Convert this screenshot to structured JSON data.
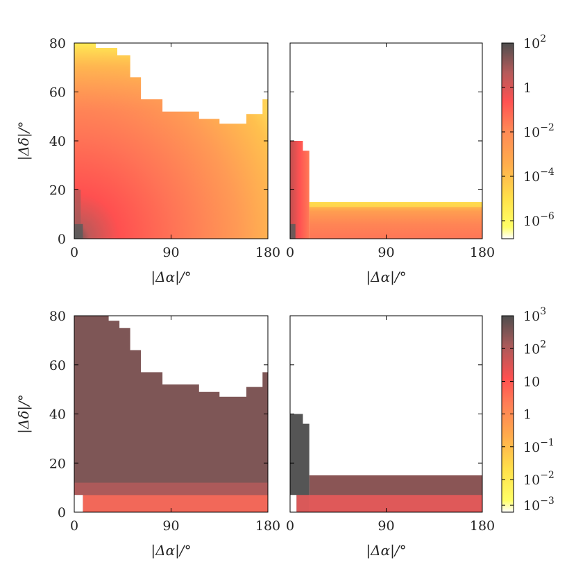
{
  "chart_data": [
    {
      "type": "heatmap",
      "panel": "top-left",
      "xlabel": "|Δα|/°",
      "ylabel": "|Δδ|/°",
      "xlim": [
        0,
        180
      ],
      "ylim": [
        0,
        80
      ],
      "xticks": [
        {
          "v": 0,
          "label": "0"
        },
        {
          "v": 90,
          "label": "90"
        },
        {
          "v": 180,
          "label": "180"
        }
      ],
      "yticks": [
        {
          "v": 0,
          "label": "0"
        },
        {
          "v": 20,
          "label": "20"
        },
        {
          "v": 40,
          "label": "40"
        },
        {
          "v": 60,
          "label": "60"
        },
        {
          "v": 80,
          "label": "80"
        }
      ],
      "color_scale": "log",
      "filled_region": [
        [
          0,
          80
        ],
        [
          20,
          80
        ],
        [
          20,
          78
        ],
        [
          40,
          78
        ],
        [
          40,
          75
        ],
        [
          52,
          75
        ],
        [
          52,
          66
        ],
        [
          62,
          66
        ],
        [
          62,
          57
        ],
        [
          82,
          57
        ],
        [
          82,
          52
        ],
        [
          116,
          52
        ],
        [
          116,
          49
        ],
        [
          135,
          49
        ],
        [
          135,
          47
        ],
        [
          160,
          47
        ],
        [
          160,
          51
        ],
        [
          175,
          51
        ],
        [
          175,
          57
        ],
        [
          180,
          57
        ]
      ],
      "description_values": "peak ~10^2 near origin, ~10^-1 near small Δα, ~10^-2 to 10^-4 at large Δα, ~10^-6 at top boundary"
    },
    {
      "type": "heatmap",
      "panel": "top-right",
      "xlabel": "|Δα|/°",
      "ylabel": "",
      "xlim": [
        0,
        180
      ],
      "ylim": [
        0,
        80
      ],
      "xticks": [
        {
          "v": 0,
          "label": "0"
        },
        {
          "v": 90,
          "label": "90"
        },
        {
          "v": 180,
          "label": "180"
        }
      ],
      "yticks": [
        {
          "v": 0,
          "label": ""
        },
        {
          "v": 20,
          "label": ""
        },
        {
          "v": 40,
          "label": ""
        },
        {
          "v": 60,
          "label": ""
        },
        {
          "v": 80,
          "label": ""
        }
      ],
      "color_scale": "log",
      "filled_region": [
        [
          0,
          40
        ],
        [
          12,
          40
        ],
        [
          12,
          36
        ],
        [
          18,
          36
        ],
        [
          18,
          15
        ],
        [
          180,
          15
        ]
      ]
    },
    {
      "type": "heatmap",
      "panel": "bottom-left",
      "xlabel": "|Δα|/°",
      "ylabel": "|Δδ|/°",
      "xlim": [
        0,
        180
      ],
      "ylim": [
        0,
        80
      ],
      "xticks": [
        {
          "v": 0,
          "label": "0"
        },
        {
          "v": 90,
          "label": "90"
        },
        {
          "v": 180,
          "label": "180"
        }
      ],
      "yticks": [
        {
          "v": 0,
          "label": "0"
        },
        {
          "v": 20,
          "label": "20"
        },
        {
          "v": 40,
          "label": "40"
        },
        {
          "v": 60,
          "label": "60"
        },
        {
          "v": 80,
          "label": "80"
        }
      ],
      "color_scale": "log",
      "filled_region": [
        [
          0,
          80
        ],
        [
          32,
          80
        ],
        [
          32,
          78
        ],
        [
          42,
          78
        ],
        [
          42,
          75
        ],
        [
          52,
          75
        ],
        [
          52,
          66
        ],
        [
          62,
          66
        ],
        [
          62,
          57
        ],
        [
          82,
          57
        ],
        [
          82,
          52
        ],
        [
          116,
          52
        ],
        [
          116,
          49
        ],
        [
          135,
          49
        ],
        [
          135,
          47
        ],
        [
          160,
          47
        ],
        [
          160,
          51
        ],
        [
          175,
          51
        ],
        [
          175,
          57
        ],
        [
          180,
          57
        ]
      ]
    },
    {
      "type": "heatmap",
      "panel": "bottom-right",
      "xlabel": "|Δα|/°",
      "ylabel": "",
      "xlim": [
        0,
        180
      ],
      "ylim": [
        0,
        80
      ],
      "xticks": [
        {
          "v": 0,
          "label": "0"
        },
        {
          "v": 90,
          "label": "90"
        },
        {
          "v": 180,
          "label": "180"
        }
      ],
      "yticks": [
        {
          "v": 0,
          "label": ""
        },
        {
          "v": 20,
          "label": ""
        },
        {
          "v": 40,
          "label": ""
        },
        {
          "v": 60,
          "label": ""
        },
        {
          "v": 80,
          "label": ""
        }
      ],
      "color_scale": "log",
      "filled_region": [
        [
          0,
          40
        ],
        [
          12,
          40
        ],
        [
          12,
          36
        ],
        [
          18,
          36
        ],
        [
          18,
          15
        ],
        [
          180,
          15
        ]
      ]
    }
  ],
  "colorbars": [
    {
      "name": "top",
      "labels": [
        {
          "base": "10",
          "exp": "2",
          "pos": 1.0
        },
        {
          "base": "1",
          "exp": "",
          "pos": 0.773
        },
        {
          "base": "10",
          "exp": "−2",
          "pos": 0.546
        },
        {
          "base": "10",
          "exp": "−4",
          "pos": 0.319
        },
        {
          "base": "10",
          "exp": "−6",
          "pos": 0.092
        }
      ],
      "colors": [
        "#ffffff",
        "#ffff55",
        "#ffd84a",
        "#ff9e50",
        "#ff7a58",
        "#ff5050",
        "#b45d5d",
        "#555555"
      ]
    },
    {
      "name": "bottom",
      "labels": [
        {
          "base": "10",
          "exp": "3",
          "pos": 1.0
        },
        {
          "base": "10",
          "exp": "2",
          "pos": 0.833
        },
        {
          "base": "10",
          "exp": "",
          "pos": 0.666
        },
        {
          "base": "1",
          "exp": "",
          "pos": 0.5
        },
        {
          "base": "10",
          "exp": "−1",
          "pos": 0.333
        },
        {
          "base": "10",
          "exp": "−2",
          "pos": 0.166
        },
        {
          "base": "10",
          "exp": "−3",
          "pos": 0.035
        }
      ],
      "colors": [
        "#ffffff",
        "#ffff55",
        "#ffd84a",
        "#ff9e50",
        "#ff7a58",
        "#ff5050",
        "#b45d5d",
        "#555555"
      ]
    }
  ]
}
